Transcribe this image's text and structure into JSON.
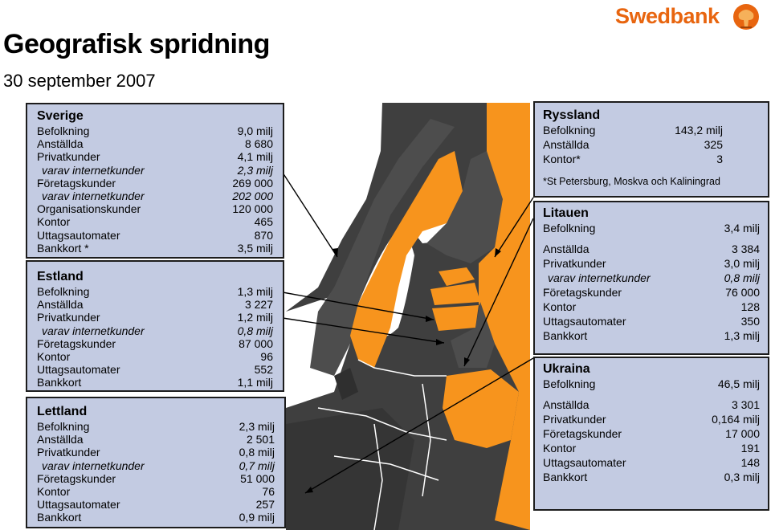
{
  "header": {
    "title": "Geografisk spridning",
    "subtitle": "30 september 2007",
    "logo": "Swedbank"
  },
  "colors": {
    "box_fill": "#c3cbe2",
    "map_highlight": "#f7941d",
    "map_other": "#4a4a4a",
    "sea": "#ffffff",
    "logo": "#e8650f"
  },
  "sverige": {
    "title": "Sverige",
    "rows": [
      {
        "label": "Befolkning",
        "value": "9,0 milj"
      },
      {
        "label": "Anställda",
        "value": "8 680"
      },
      {
        "label": "Privatkunder",
        "value": "4,1 milj"
      },
      {
        "label": "varav internetkunder",
        "value": "2,3 milj"
      },
      {
        "label": "Företagskunder",
        "value": "269 000"
      },
      {
        "label": "varav internetkunder",
        "value": "202 000"
      },
      {
        "label": "Organisationskunder",
        "value": "120 000"
      },
      {
        "label": "Kontor",
        "value": "465"
      },
      {
        "label": "Uttagsautomater",
        "value": "870"
      },
      {
        "label": "Bankkort *",
        "value": "3,5 milj"
      }
    ]
  },
  "estland": {
    "title": "Estland",
    "rows": [
      {
        "label": "Befolkning",
        "value": "1,3 milj"
      },
      {
        "label": "Anställda",
        "value": "3 227"
      },
      {
        "label": "Privatkunder",
        "value": "1,2 milj"
      },
      {
        "label": "varav internetkunder",
        "value": "0,8 milj"
      },
      {
        "label": "Företagskunder",
        "value": "87 000"
      },
      {
        "label": "Kontor",
        "value": "96"
      },
      {
        "label": "Uttagsautomater",
        "value": "552"
      },
      {
        "label": "Bankkort",
        "value": "1,1 milj"
      }
    ]
  },
  "lettland": {
    "title": "Lettland",
    "rows": [
      {
        "label": "Befolkning",
        "value": "2,3 milj"
      },
      {
        "label": "Anställda",
        "value": "2 501"
      },
      {
        "label": "Privatkunder",
        "value": "0,8 milj"
      },
      {
        "label": "varav internetkunder",
        "value": "0,7 milj"
      },
      {
        "label": "Företagskunder",
        "value": "51 000"
      },
      {
        "label": "Kontor",
        "value": "76"
      },
      {
        "label": "Uttagsautomater",
        "value": "257"
      },
      {
        "label": "Bankkort",
        "value": "0,9 milj"
      }
    ]
  },
  "ryssland": {
    "title": "Ryssland",
    "rows": [
      {
        "label": "Befolkning",
        "value": "143,2 milj"
      },
      {
        "label": "Anställda",
        "value": "325"
      },
      {
        "label": "Kontor*",
        "value": "3"
      }
    ],
    "note": "*St Petersburg, Moskva och Kaliningrad"
  },
  "litauen": {
    "title": "Litauen",
    "first": {
      "label": "Befolkning",
      "value": "3,4 milj"
    },
    "rows": [
      {
        "label": "Anställda",
        "value": "3 384"
      },
      {
        "label": "Privatkunder",
        "value": "3,0 milj"
      },
      {
        "label": "varav internetkunder",
        "value": "0,8 milj"
      },
      {
        "label": "Företagskunder",
        "value": "76 000"
      },
      {
        "label": "Kontor",
        "value": "128"
      },
      {
        "label": "Uttagsautomater",
        "value": "350"
      },
      {
        "label": "Bankkort",
        "value": "1,3 milj"
      }
    ]
  },
  "ukraina": {
    "title": "Ukraina",
    "first": {
      "label": "Befolkning",
      "value": "46,5 milj"
    },
    "rows": [
      {
        "label": "Anställda",
        "value": "3 301"
      },
      {
        "label": "Privatkunder",
        "value": "0,164 milj"
      },
      {
        "label": "Företagskunder",
        "value": "17 000"
      },
      {
        "label": "Kontor",
        "value": "191"
      },
      {
        "label": "Uttagsautomater",
        "value": "148"
      },
      {
        "label": "Bankkort",
        "value": "0,3 milj"
      }
    ]
  }
}
